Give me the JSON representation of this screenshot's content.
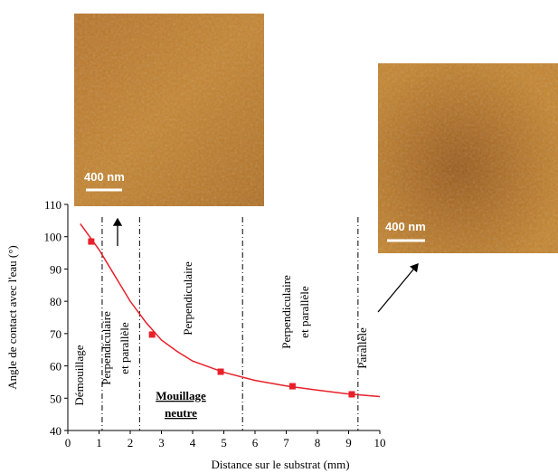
{
  "chart_data": {
    "type": "scatter",
    "xlabel": "Distance sur le substrat (mm)",
    "ylabel": "Angle de contact avec l'eau (°)",
    "xlim": [
      0,
      10
    ],
    "ylim": [
      40,
      110
    ],
    "xticks": [
      0,
      1,
      2,
      3,
      4,
      5,
      6,
      7,
      8,
      9,
      10
    ],
    "yticks": [
      40,
      50,
      60,
      70,
      80,
      90,
      100,
      110
    ],
    "points": {
      "x": [
        0.75,
        2.7,
        4.9,
        7.2,
        9.1
      ],
      "y": [
        98.5,
        69.7,
        58.2,
        53.7,
        51.2
      ],
      "color": "#e8202a"
    },
    "fit": {
      "x": [
        0.4,
        1,
        1.5,
        2,
        2.5,
        3,
        3.5,
        4,
        5,
        6,
        7,
        8,
        9,
        10
      ],
      "y": [
        104,
        96,
        88,
        80,
        73.5,
        68,
        64.5,
        61.5,
        58,
        55.5,
        53.8,
        52.5,
        51.3,
        50.5
      ],
      "color": "#e8202a"
    },
    "dividers": [
      1.1,
      2.3,
      5.6,
      9.3
    ],
    "regions": [
      {
        "lines": [
          "Démouillage"
        ]
      },
      {
        "lines": [
          "Perpendiculaire",
          "et parallèle"
        ]
      },
      {
        "lines": [
          "Perpendiculaire"
        ]
      },
      {
        "lines": [
          "Perpendiculaire",
          "et parallèle"
        ]
      },
      {
        "lines": [
          "Parallèle"
        ]
      }
    ],
    "annotation": {
      "lines": [
        "Mouillage",
        "neutre"
      ]
    },
    "images": [
      {
        "scale_label": "400 nm"
      },
      {
        "scale_label": "400 nm"
      }
    ]
  }
}
